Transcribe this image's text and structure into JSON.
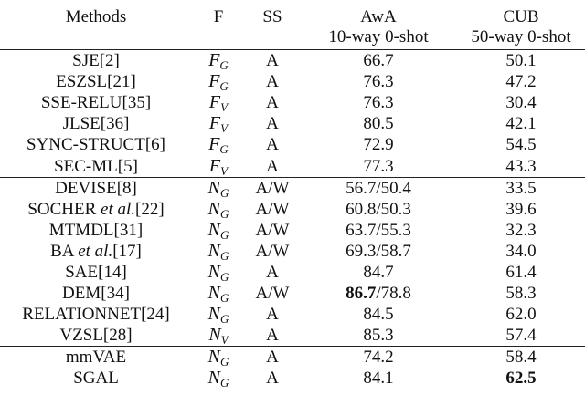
{
  "header": {
    "methods": "Methods",
    "f": "F",
    "ss": "SS",
    "awa": "AwA",
    "awa_sub": "10-way 0-shot",
    "cub": "CUB",
    "cub_sub": "50-way 0-shot"
  },
  "groups": [
    [
      {
        "method": "SJE[2]",
        "f_base": "F",
        "f_sub": "G",
        "ss": "A",
        "awa": "66.7",
        "cub": "50.1"
      },
      {
        "method": "ESZSL[21]",
        "f_base": "F",
        "f_sub": "G",
        "ss": "A",
        "awa": "76.3",
        "cub": "47.2"
      },
      {
        "method": "SSE-RELU[35]",
        "f_base": "F",
        "f_sub": "V",
        "ss": "A",
        "awa": "76.3",
        "cub": "30.4"
      },
      {
        "method": "JLSE[36]",
        "f_base": "F",
        "f_sub": "V",
        "ss": "A",
        "awa": "80.5",
        "cub": "42.1"
      },
      {
        "method": "SYNC-STRUCT[6]",
        "f_base": "F",
        "f_sub": "G",
        "ss": "A",
        "awa": "72.9",
        "cub": "54.5"
      },
      {
        "method": "SEC-ML[5]",
        "f_base": "F",
        "f_sub": "V",
        "ss": "A",
        "awa": "77.3",
        "cub": "43.3"
      }
    ],
    [
      {
        "method": "DEVISE[8]",
        "f_base": "N",
        "f_sub": "G",
        "ss": "A/W",
        "awa": "56.7/50.4",
        "cub": "33.5"
      },
      {
        "method_pre": "SOCHER ",
        "method_it": "et al.",
        "method_post": "[22]",
        "f_base": "N",
        "f_sub": "G",
        "ss": "A/W",
        "awa": "60.8/50.3",
        "cub": "39.6"
      },
      {
        "method": "MTMDL[31]",
        "f_base": "N",
        "f_sub": "G",
        "ss": "A/W",
        "awa": "63.7/55.3",
        "cub": "32.3"
      },
      {
        "method_pre": "BA ",
        "method_it": "et al.",
        "method_post": "[17]",
        "f_base": "N",
        "f_sub": "G",
        "ss": "A/W",
        "awa": "69.3/58.7",
        "cub": "34.0"
      },
      {
        "method": "SAE[14]",
        "f_base": "N",
        "f_sub": "G",
        "ss": "A",
        "awa": "84.7",
        "cub": "61.4"
      },
      {
        "method": "DEM[34]",
        "f_base": "N",
        "f_sub": "G",
        "ss": "A/W",
        "awa_bold": "86.7",
        "awa_rest": "/78.8",
        "cub": "58.3"
      },
      {
        "method": "RELATIONNET[24]",
        "f_base": "N",
        "f_sub": "G",
        "ss": "A",
        "awa": "84.5",
        "cub": "62.0"
      },
      {
        "method": "VZSL[28]",
        "f_base": "N",
        "f_sub": "V",
        "ss": "A",
        "awa": "85.3",
        "cub": "57.4"
      }
    ],
    [
      {
        "method": "mmVAE",
        "f_base": "N",
        "f_sub": "G",
        "ss": "A",
        "awa": "74.2",
        "cub": "58.4"
      },
      {
        "method": "SGAL",
        "f_base": "N",
        "f_sub": "G",
        "ss": "A",
        "awa": "84.1",
        "cub_bold": "62.5"
      }
    ]
  ]
}
